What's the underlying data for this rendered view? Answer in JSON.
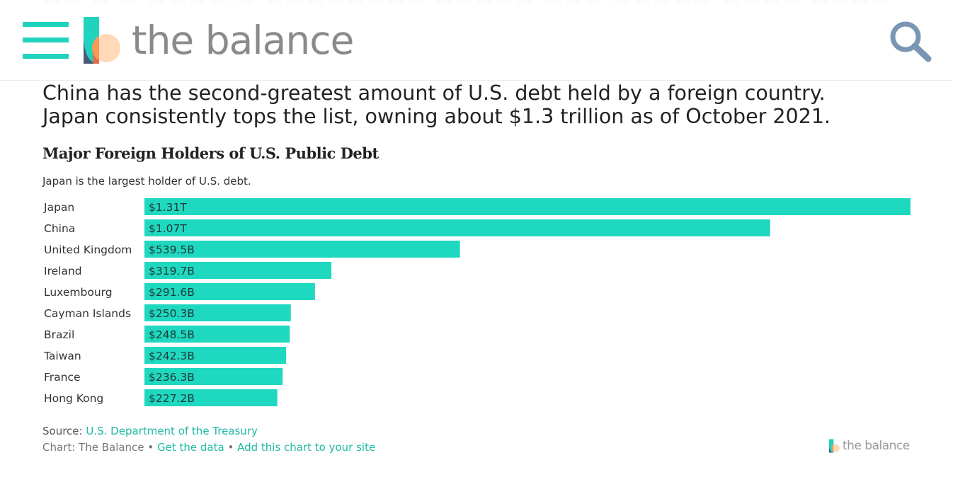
{
  "header": {
    "logo_text": "the balance",
    "colors": {
      "accent": "#1fd3bf",
      "logo_text": "#8a8a8a",
      "search_icon": "#7a96b4"
    }
  },
  "intro": {
    "line1": "China has the second-greatest amount of U.S. debt held by a foreign country.",
    "line2": "Japan consistently tops the list, owning about $1.3 trillion as of October 2021."
  },
  "chart_data": {
    "type": "bar",
    "orientation": "horizontal",
    "title": "Major Foreign Holders of U.S. Public Debt",
    "subtitle": "Japan is the largest holder of U.S. debt.",
    "categories": [
      "Japan",
      "China",
      "United Kingdom",
      "Ireland",
      "Luxembourg",
      "Cayman Islands",
      "Brazil",
      "Taiwan",
      "France",
      "Hong Kong"
    ],
    "values": [
      1310,
      1070,
      539.5,
      319.7,
      291.6,
      250.3,
      248.5,
      242.3,
      236.3,
      227.2
    ],
    "value_unit": "$B",
    "data_labels": [
      "$1.31T",
      "$1.07T",
      "$539.5B",
      "$319.7B",
      "$291.6B",
      "$250.3B",
      "$248.5B",
      "$242.3B",
      "$236.3B",
      "$227.2B"
    ],
    "xlim": [
      0,
      1310
    ],
    "grid": false,
    "legend": "none",
    "bar_color": "#1fd8c0"
  },
  "footer": {
    "source_prefix": "Source:",
    "source_link": "U.S. Department of the Treasury",
    "chart_credit": "Chart: The Balance",
    "separator": "•",
    "get_data": "Get the data",
    "add_chart": "Add this chart to your site",
    "logo_text": "the balance"
  }
}
